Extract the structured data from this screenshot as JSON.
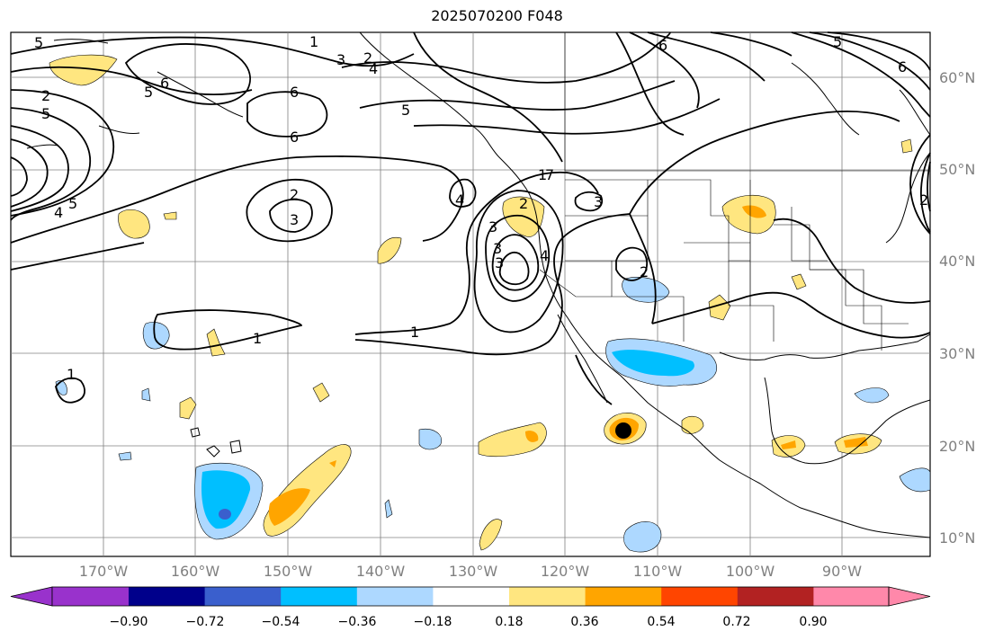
{
  "title": "2025070200 F048",
  "lat_labels": [
    "60°N",
    "50°N",
    "40°N",
    "30°N",
    "20°N",
    "10°N"
  ],
  "lon_labels": [
    "170°W",
    "160°W",
    "150°W",
    "140°W",
    "130°W",
    "120°W",
    "110°W",
    "100°W",
    "90°W"
  ],
  "contour_labels": [
    "5",
    "1",
    "3",
    "2",
    "4",
    "6",
    "5",
    "2",
    "5",
    "6",
    "6",
    "2",
    "3",
    "4",
    "5",
    "2",
    "3",
    "4",
    "3",
    "2",
    "3",
    "1",
    "1",
    "1",
    "6",
    "5",
    "4",
    "5",
    "6",
    "3",
    "2",
    "1",
    "7"
  ],
  "colorbar": {
    "ticks": [
      "−0.90",
      "−0.72",
      "−0.54",
      "−0.36",
      "−0.18",
      "0.18",
      "0.36",
      "0.54",
      "0.72",
      "0.90"
    ],
    "colors": [
      "#9932cc",
      "#00008b",
      "#3a5fcd",
      "#00bfff",
      "#add8ff",
      "#ffffff",
      "#ffe680",
      "#ffa500",
      "#ff4500",
      "#b22222",
      "#ff88aa"
    ]
  }
}
